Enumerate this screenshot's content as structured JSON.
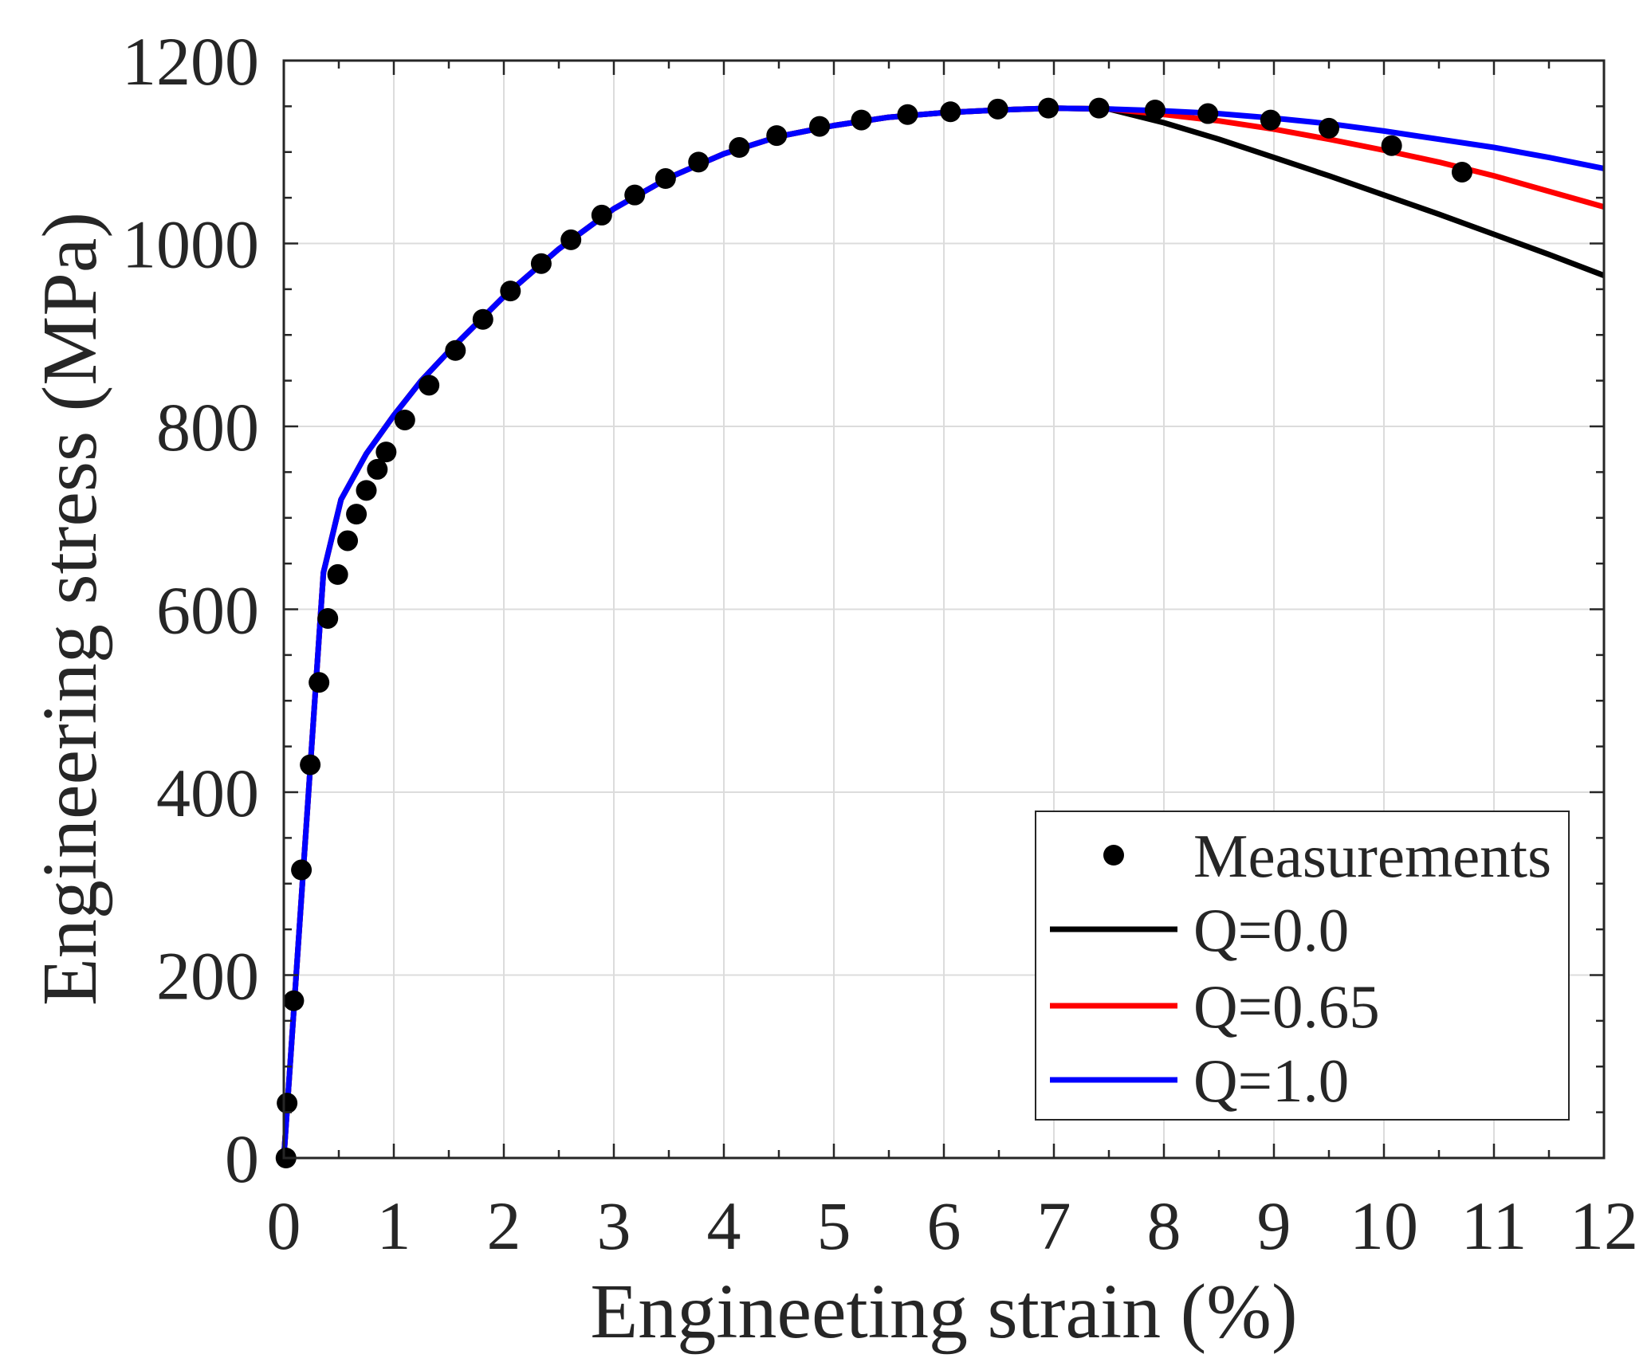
{
  "chart_data": {
    "type": "line",
    "title": "",
    "xlabel": "Engineeting strain (%)",
    "ylabel": "Engineering stress (MPa)",
    "xlim": [
      0,
      12
    ],
    "ylim": [
      0,
      1200
    ],
    "x_ticks": [
      0,
      1,
      2,
      3,
      4,
      5,
      6,
      7,
      8,
      9,
      10,
      11,
      12
    ],
    "y_ticks": [
      0,
      200,
      400,
      600,
      800,
      1000,
      1200
    ],
    "minor_x_step": 0.5,
    "minor_y_step": 50,
    "grid": true,
    "legend_position": "bottom-right",
    "text_color": "#262626",
    "grid_color": "#dcdcdc",
    "series": [
      {
        "name": "Measurements",
        "kind": "scatter",
        "color": "#000000",
        "x": [
          0.02,
          0.03,
          0.09,
          0.16,
          0.24,
          0.32,
          0.4,
          0.49,
          0.58,
          0.66,
          0.75,
          0.85,
          0.93,
          1.1,
          1.32,
          1.56,
          1.81,
          2.06,
          2.34,
          2.61,
          2.89,
          3.19,
          3.47,
          3.77,
          4.14,
          4.48,
          4.87,
          5.25,
          5.67,
          6.06,
          6.49,
          6.95,
          7.41,
          7.92,
          8.4,
          8.97,
          9.5,
          10.07,
          10.71
        ],
        "y": [
          0,
          60,
          172,
          315,
          430,
          520,
          590,
          638,
          675,
          704,
          730,
          753,
          772,
          807,
          845,
          883,
          917,
          948,
          978,
          1004,
          1031,
          1053,
          1071,
          1089,
          1105,
          1118,
          1128,
          1135,
          1141,
          1144,
          1147,
          1148,
          1148,
          1146,
          1142,
          1135,
          1126,
          1107,
          1078
        ]
      },
      {
        "name": "Q=0.0",
        "kind": "line",
        "color": "#000000",
        "x": [
          0,
          0.36,
          0.52,
          0.75,
          1,
          1.25,
          1.5,
          1.75,
          2,
          2.5,
          3,
          3.5,
          4,
          4.5,
          5,
          5.5,
          6,
          6.5,
          7,
          7.5,
          8,
          8.5,
          9,
          9.5,
          10,
          10.5,
          11,
          11.5,
          12
        ],
        "y": [
          0,
          640,
          720,
          770,
          812,
          850,
          882,
          912,
          942,
          994,
          1038,
          1072,
          1098,
          1117,
          1129,
          1138,
          1143,
          1146,
          1148,
          1147,
          1132,
          1114,
          1094,
          1074,
          1053,
          1032,
          1010,
          988,
          965
        ]
      },
      {
        "name": "Q=0.65",
        "kind": "line",
        "color": "#ff0000",
        "x": [
          0,
          0.36,
          0.52,
          0.75,
          1,
          1.25,
          1.5,
          1.75,
          2,
          2.5,
          3,
          3.5,
          4,
          4.5,
          5,
          5.5,
          6,
          6.5,
          7,
          7.5,
          8,
          8.5,
          9,
          9.5,
          10,
          10.5,
          11,
          11.5,
          12
        ],
        "y": [
          0,
          640,
          720,
          770,
          812,
          850,
          882,
          912,
          942,
          994,
          1038,
          1072,
          1098,
          1117,
          1129,
          1138,
          1143,
          1146,
          1148,
          1147,
          1141,
          1134,
          1125,
          1114,
          1102,
          1089,
          1074,
          1057,
          1040
        ]
      },
      {
        "name": "Q=1.0",
        "kind": "line",
        "color": "#0000ff",
        "x": [
          0,
          0.36,
          0.52,
          0.75,
          1,
          1.25,
          1.5,
          1.75,
          2,
          2.5,
          3,
          3.5,
          4,
          4.5,
          5,
          5.5,
          6,
          6.5,
          7,
          7.5,
          8,
          8.5,
          9,
          9.5,
          10,
          10.5,
          11,
          11.5,
          12
        ],
        "y": [
          0,
          640,
          720,
          770,
          812,
          850,
          882,
          912,
          942,
          994,
          1038,
          1072,
          1098,
          1117,
          1129,
          1138,
          1143,
          1146,
          1148,
          1147,
          1145,
          1142,
          1137,
          1131,
          1123,
          1114,
          1105,
          1094,
          1082
        ]
      }
    ]
  }
}
